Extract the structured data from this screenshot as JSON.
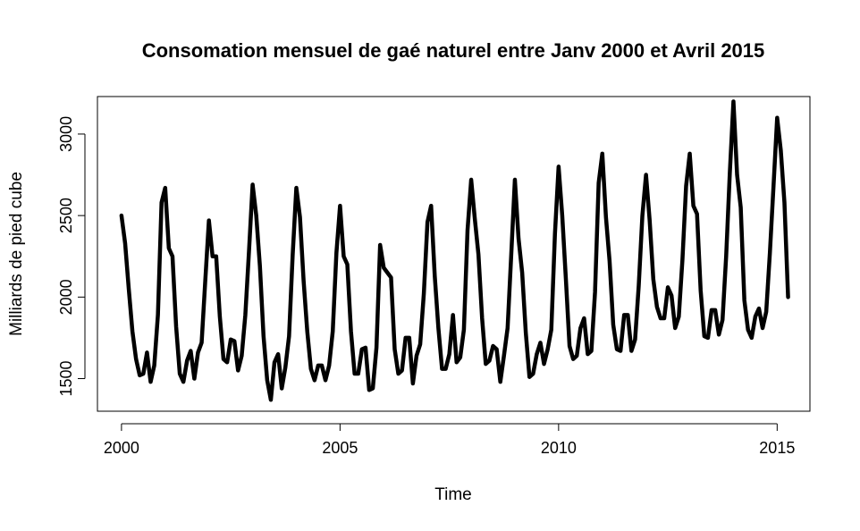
{
  "chart_data": {
    "type": "line",
    "title": "Consomation mensuel de gaé naturel entre Janv 2000 et Avril 2015",
    "xlabel": "Time",
    "ylabel": "Milliards de pied cube",
    "xlim": [
      1999.45,
      2015.75
    ],
    "ylim": [
      1300,
      3230
    ],
    "x_ticks": [
      2000,
      2005,
      2010,
      2015
    ],
    "x_tick_labels": [
      "2000",
      "2005",
      "2010",
      "2015"
    ],
    "y_ticks": [
      1500,
      2000,
      2500,
      3000
    ],
    "y_tick_labels": [
      "1500",
      "2000",
      "2500",
      "3000"
    ],
    "grid": false,
    "legend": "none",
    "line_color": "#000000",
    "series": [
      {
        "start": "2000-01",
        "frequency": "monthly",
        "values": [
          2500,
          2330,
          2050,
          1790,
          1620,
          1520,
          1530,
          1660,
          1480,
          1580,
          1890,
          2580,
          2670,
          2300,
          2250,
          1820,
          1530,
          1480,
          1610,
          1670,
          1500,
          1660,
          1720,
          2100,
          2470,
          2250,
          2250,
          1880,
          1620,
          1600,
          1740,
          1730,
          1550,
          1640,
          1890,
          2280,
          2690,
          2500,
          2190,
          1760,
          1490,
          1370,
          1600,
          1650,
          1440,
          1570,
          1760,
          2260,
          2670,
          2490,
          2100,
          1790,
          1560,
          1490,
          1580,
          1580,
          1490,
          1580,
          1790,
          2270,
          2560,
          2250,
          2200,
          1790,
          1530,
          1530,
          1680,
          1690,
          1430,
          1440,
          1690,
          2320,
          2180,
          2150,
          2120,
          1680,
          1530,
          1550,
          1750,
          1750,
          1470,
          1640,
          1710,
          2020,
          2460,
          2560,
          2130,
          1810,
          1560,
          1560,
          1650,
          1890,
          1600,
          1630,
          1800,
          2410,
          2720,
          2480,
          2260,
          1870,
          1590,
          1610,
          1700,
          1680,
          1480,
          1640,
          1810,
          2260,
          2720,
          2360,
          2150,
          1780,
          1510,
          1530,
          1650,
          1720,
          1590,
          1680,
          1800,
          2390,
          2800,
          2500,
          2110,
          1700,
          1620,
          1640,
          1810,
          1870,
          1650,
          1670,
          2030,
          2700,
          2880,
          2490,
          2220,
          1830,
          1680,
          1670,
          1890,
          1890,
          1670,
          1740,
          2070,
          2500,
          2750,
          2470,
          2110,
          1940,
          1870,
          1870,
          2060,
          2010,
          1810,
          1880,
          2230,
          2680,
          2880,
          2560,
          2510,
          2040,
          1760,
          1750,
          1920,
          1920,
          1770,
          1860,
          2250,
          2760,
          3200,
          2750,
          2550,
          1980,
          1800,
          1750,
          1880,
          1930,
          1810,
          1910,
          2270,
          2680,
          3100,
          2900,
          2580,
          2000
        ]
      }
    ]
  }
}
